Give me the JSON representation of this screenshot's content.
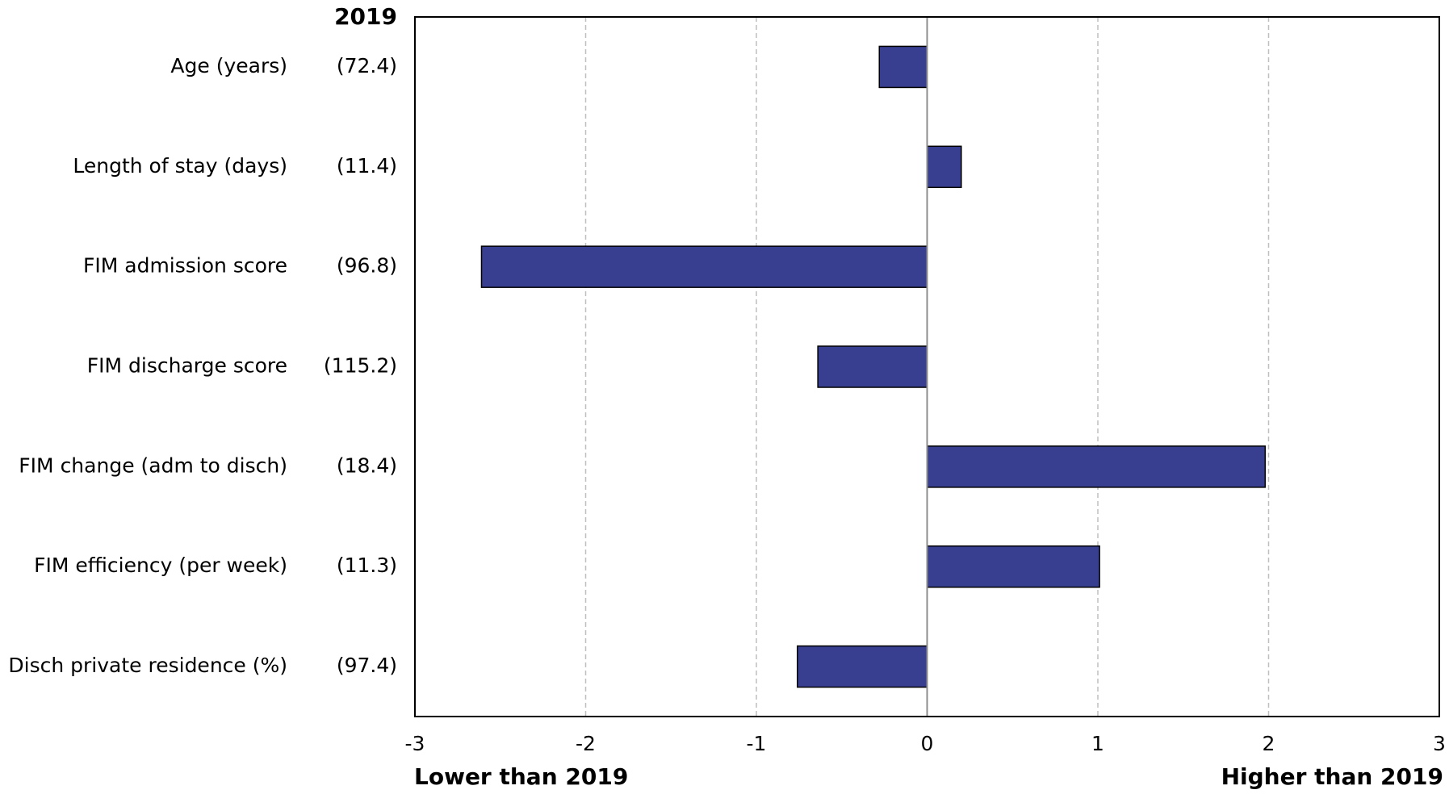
{
  "chart_data": {
    "type": "bar",
    "orientation": "horizontal",
    "baseline_header": "2019",
    "categories": [
      "Age (years)",
      "Length of stay (days)",
      "FIM admission score",
      "FIM discharge score",
      "FIM change (adm to disch)",
      "FIM efficiency (per week)",
      "Disch private residence (%)"
    ],
    "baseline_values": [
      "(72.4)",
      "(11.4)",
      "(96.8)",
      "(115.2)",
      "(18.4)",
      "(11.3)",
      "(97.4)"
    ],
    "values": [
      -0.28,
      0.2,
      -2.61,
      -0.64,
      1.98,
      1.01,
      -0.76
    ],
    "xlim": [
      -3,
      3
    ],
    "xticks": [
      -3,
      -2,
      -1,
      0,
      1,
      2,
      3
    ],
    "xtick_labels": [
      "-3",
      "-2",
      "-1",
      "0",
      "1",
      "2",
      "3"
    ],
    "xlabel_left": "Lower than 2019",
    "xlabel_right": "Higher than 2019",
    "grid": "vertical dashed",
    "bar_color": "#383F91",
    "bar_edge_color": "#000000",
    "grid_color": "#BFBFBF"
  }
}
